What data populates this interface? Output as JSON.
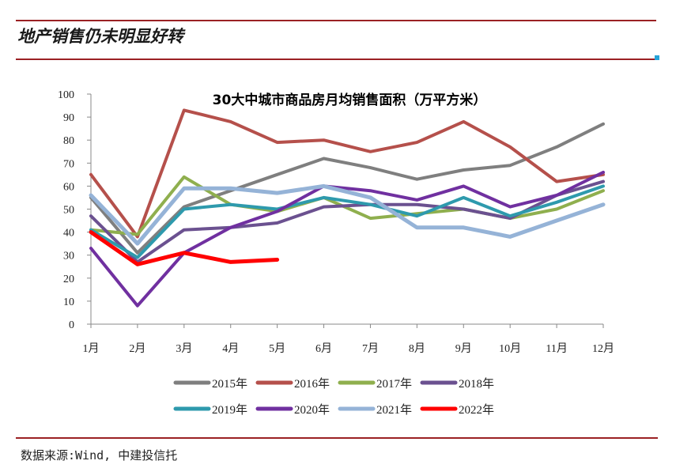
{
  "header": {
    "title": "地产销售仍未明显好转"
  },
  "footer": {
    "source": "数据来源:Wind, 中建投信托"
  },
  "colors": {
    "rule": "#9b2124",
    "accent": "#26a3d8"
  },
  "chart_data": {
    "type": "line",
    "title": "30大中城市商品房月均销售面积（万平方米）",
    "xlabel": "",
    "ylabel": "",
    "categories": [
      "1月",
      "2月",
      "3月",
      "4月",
      "5月",
      "6月",
      "7月",
      "8月",
      "9月",
      "10月",
      "11月",
      "12月"
    ],
    "ylim": [
      0,
      100
    ],
    "yticks": [
      0,
      10,
      20,
      30,
      40,
      50,
      60,
      70,
      80,
      90,
      100
    ],
    "legend_position": "bottom",
    "series": [
      {
        "name": "2015年",
        "color": "#7f7f7f",
        "width": 4,
        "values": [
          55,
          31,
          51,
          58,
          65,
          72,
          68,
          63,
          67,
          69,
          77,
          87
        ]
      },
      {
        "name": "2016年",
        "color": "#b5504b",
        "width": 4,
        "values": [
          65,
          38,
          93,
          88,
          79,
          80,
          75,
          79,
          88,
          77,
          62,
          65
        ]
      },
      {
        "name": "2017年",
        "color": "#8faf4e",
        "width": 4,
        "values": [
          41,
          39,
          64,
          52,
          49,
          55,
          46,
          48,
          50,
          46,
          50,
          58
        ]
      },
      {
        "name": "2018年",
        "color": "#6b5190",
        "width": 4,
        "values": [
          47,
          27,
          41,
          42,
          44,
          51,
          52,
          52,
          50,
          46,
          56,
          62
        ]
      },
      {
        "name": "2019年",
        "color": "#2e9aad",
        "width": 4,
        "values": [
          41,
          29,
          50,
          52,
          50,
          55,
          52,
          47,
          55,
          47,
          53,
          60
        ]
      },
      {
        "name": "2020年",
        "color": "#7030a0",
        "width": 4,
        "values": [
          33,
          8,
          31,
          42,
          49,
          60,
          58,
          54,
          60,
          51,
          56,
          66
        ]
      },
      {
        "name": "2021年",
        "color": "#95b3d7",
        "width": 5,
        "values": [
          56,
          35,
          59,
          59,
          57,
          60,
          55,
          42,
          42,
          38,
          45,
          52
        ]
      },
      {
        "name": "2022年",
        "color": "#ff0000",
        "width": 5,
        "values": [
          40,
          26,
          31,
          27,
          28,
          null,
          null,
          null,
          null,
          null,
          null,
          null
        ]
      }
    ]
  }
}
